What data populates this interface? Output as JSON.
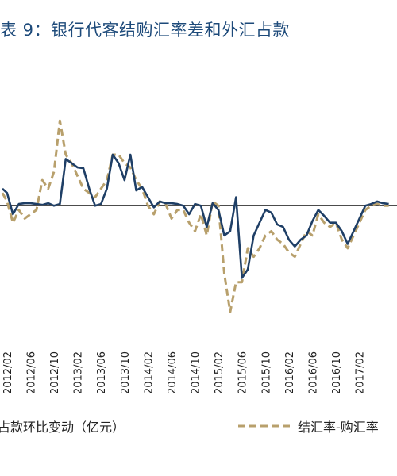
{
  "title": "表 9：银行代客结购汇率差和外汇占款",
  "chart_data": {
    "type": "line",
    "title": "表 9：银行代客结购汇率差和外汇占款",
    "categories": [
      "2012/02",
      "2012/06",
      "2012/10",
      "2013/02",
      "2013/06",
      "2013/10",
      "2014/02",
      "2014/06",
      "2014/10",
      "2015/02",
      "2015/06",
      "2015/10",
      "2016/02",
      "2016/06",
      "2016/10",
      "2017/02"
    ],
    "grid": false,
    "legend": "bottom",
    "series": [
      {
        "name": "占款环比变动（亿元）",
        "color": "#1f3f66",
        "style": "solid",
        "x": [
          -0.2,
          0,
          0.25,
          0.5,
          0.75,
          1,
          1.25,
          1.5,
          1.75,
          2,
          2.25,
          2.5,
          2.75,
          3,
          3.25,
          3.5,
          3.75,
          4,
          4.25,
          4.5,
          4.75,
          5,
          5.25,
          5.5,
          5.75,
          6,
          6.25,
          6.5,
          6.75,
          7,
          7.25,
          7.5,
          7.75,
          8,
          8.25,
          8.5,
          8.75,
          9,
          9.25,
          9.5,
          9.75,
          10,
          10.25,
          10.5,
          10.75,
          11,
          11.25,
          11.5,
          11.75,
          12,
          12.25,
          12.5,
          12.75,
          13,
          13.25,
          13.5,
          13.75,
          14,
          14.25,
          14.5,
          14.75,
          15,
          15.25,
          15.5,
          15.75,
          16,
          16.25
        ],
        "y": [
          0.2,
          0.15,
          -0.1,
          0.02,
          0.03,
          0.03,
          0.02,
          0.01,
          0.03,
          0.0,
          0.02,
          0.55,
          0.5,
          0.45,
          0.44,
          0.2,
          0.0,
          0.02,
          0.2,
          0.6,
          0.5,
          0.3,
          0.6,
          0.18,
          0.22,
          0.1,
          -0.02,
          0.05,
          0.03,
          0.03,
          0.02,
          0.0,
          -0.1,
          0.02,
          0.0,
          -0.25,
          0.03,
          -0.05,
          -0.35,
          -0.3,
          0.1,
          -0.85,
          -0.75,
          -0.35,
          -0.2,
          -0.05,
          -0.08,
          -0.22,
          -0.25,
          -0.4,
          -0.48,
          -0.4,
          -0.35,
          -0.18,
          -0.05,
          -0.12,
          -0.2,
          -0.2,
          -0.3,
          -0.45,
          -0.3,
          -0.15,
          0.0,
          0.02,
          0.05,
          0.03,
          0.02
        ]
      },
      {
        "name": "结汇率-购汇率",
        "color": "#b8a06c",
        "style": "dashed",
        "x": [
          -0.2,
          0,
          0.25,
          0.5,
          0.75,
          1,
          1.25,
          1.5,
          1.75,
          2,
          2.25,
          2.5,
          2.75,
          3,
          3.25,
          3.5,
          3.75,
          4,
          4.25,
          4.5,
          4.75,
          5,
          5.25,
          5.5,
          5.75,
          6,
          6.25,
          6.5,
          6.75,
          7,
          7.25,
          7.5,
          7.75,
          8,
          8.25,
          8.5,
          8.75,
          9,
          9.25,
          9.5,
          9.75,
          10,
          10.25,
          10.5,
          10.75,
          11,
          11.25,
          11.5,
          11.75,
          12,
          12.25,
          12.5,
          12.75,
          13,
          13.25,
          13.5,
          13.75,
          14,
          14.25,
          14.5,
          14.75,
          15,
          15.25,
          15.5,
          15.75,
          16,
          16.25
        ],
        "y": [
          0.15,
          0.05,
          -0.2,
          -0.05,
          -0.15,
          -0.1,
          -0.05,
          0.3,
          0.2,
          0.4,
          1.0,
          0.6,
          0.5,
          0.35,
          0.2,
          0.15,
          0.1,
          0.2,
          0.3,
          0.6,
          0.6,
          0.5,
          0.45,
          0.3,
          0.2,
          0.0,
          -0.1,
          0.05,
          0.02,
          -0.15,
          -0.05,
          -0.05,
          -0.2,
          -0.3,
          -0.1,
          -0.35,
          0.05,
          0.0,
          -0.8,
          -1.25,
          -0.9,
          -0.9,
          -0.5,
          -0.6,
          -0.5,
          -0.35,
          -0.3,
          -0.4,
          -0.45,
          -0.55,
          -0.6,
          -0.45,
          -0.3,
          -0.35,
          -0.1,
          -0.2,
          -0.25,
          -0.2,
          -0.4,
          -0.5,
          -0.35,
          -0.2,
          -0.05,
          0.0,
          0.02,
          0.0,
          0.0
        ]
      }
    ],
    "legend_items": [
      "占款环比变动（亿元）",
      "结汇率-购汇率"
    ],
    "xlim": [
      -0.3,
      16.6
    ],
    "ylim": [
      -1.5,
      1.3
    ]
  }
}
